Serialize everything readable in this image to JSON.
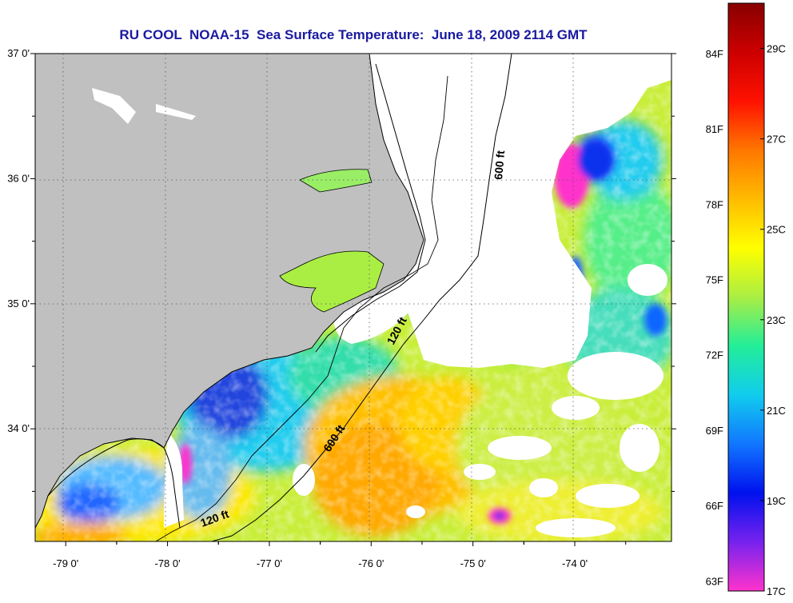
{
  "title": "RU COOL  NOAA-15  Sea Surface Temperature:  June 18, 2009 2114 GMT",
  "map": {
    "lon_range": [
      -79.3,
      -73.05
    ],
    "lat_range": [
      33.1,
      37.0
    ],
    "lat_ticks": [
      {
        "value": 37.0,
        "label": "37 0'"
      },
      {
        "value": 36.0,
        "label": "36 0'"
      },
      {
        "value": 35.0,
        "label": "35 0'"
      },
      {
        "value": 34.0,
        "label": "34 0'"
      }
    ],
    "lon_ticks": [
      {
        "value": -79.0,
        "label": "-79 0'"
      },
      {
        "value": -78.0,
        "label": "-78 0'"
      },
      {
        "value": -77.0,
        "label": "-77 0'"
      },
      {
        "value": -76.0,
        "label": "-76 0'"
      },
      {
        "value": -75.0,
        "label": "-75 0'"
      },
      {
        "value": -74.0,
        "label": "-74 0'"
      }
    ],
    "contour_labels": {
      "c600_north": "600 ft",
      "c120_north": "120 ft",
      "c600_south": "600 ft",
      "c120_south": "120 ft"
    },
    "colors": {
      "land": "#c0c0c0",
      "cloud": "#ffffff",
      "grid": "#555555"
    }
  },
  "colorbar": {
    "range_c": [
      17,
      30
    ],
    "fahrenheit_labels": [
      {
        "value": 84,
        "label": "84F"
      },
      {
        "value": 81,
        "label": "81F"
      },
      {
        "value": 78,
        "label": "78F"
      },
      {
        "value": 75,
        "label": "75F"
      },
      {
        "value": 72,
        "label": "72F"
      },
      {
        "value": 69,
        "label": "69F"
      },
      {
        "value": 66,
        "label": "66F"
      },
      {
        "value": 63,
        "label": "63F"
      }
    ],
    "celsius_labels": [
      {
        "value": 29,
        "label": "29C"
      },
      {
        "value": 27,
        "label": "27C"
      },
      {
        "value": 25,
        "label": "25C"
      },
      {
        "value": 23,
        "label": "23C"
      },
      {
        "value": 21,
        "label": "21C"
      },
      {
        "value": 19,
        "label": "19C"
      },
      {
        "value": 17,
        "label": "17C"
      }
    ],
    "stops": [
      "#ff33cc",
      "#7722ee",
      "#0011ee",
      "#1177ff",
      "#11ccee",
      "#22ee99",
      "#aaee44",
      "#ffff00",
      "#ffbb00",
      "#ff7700",
      "#ff1100",
      "#cc0000",
      "#880000"
    ]
  }
}
